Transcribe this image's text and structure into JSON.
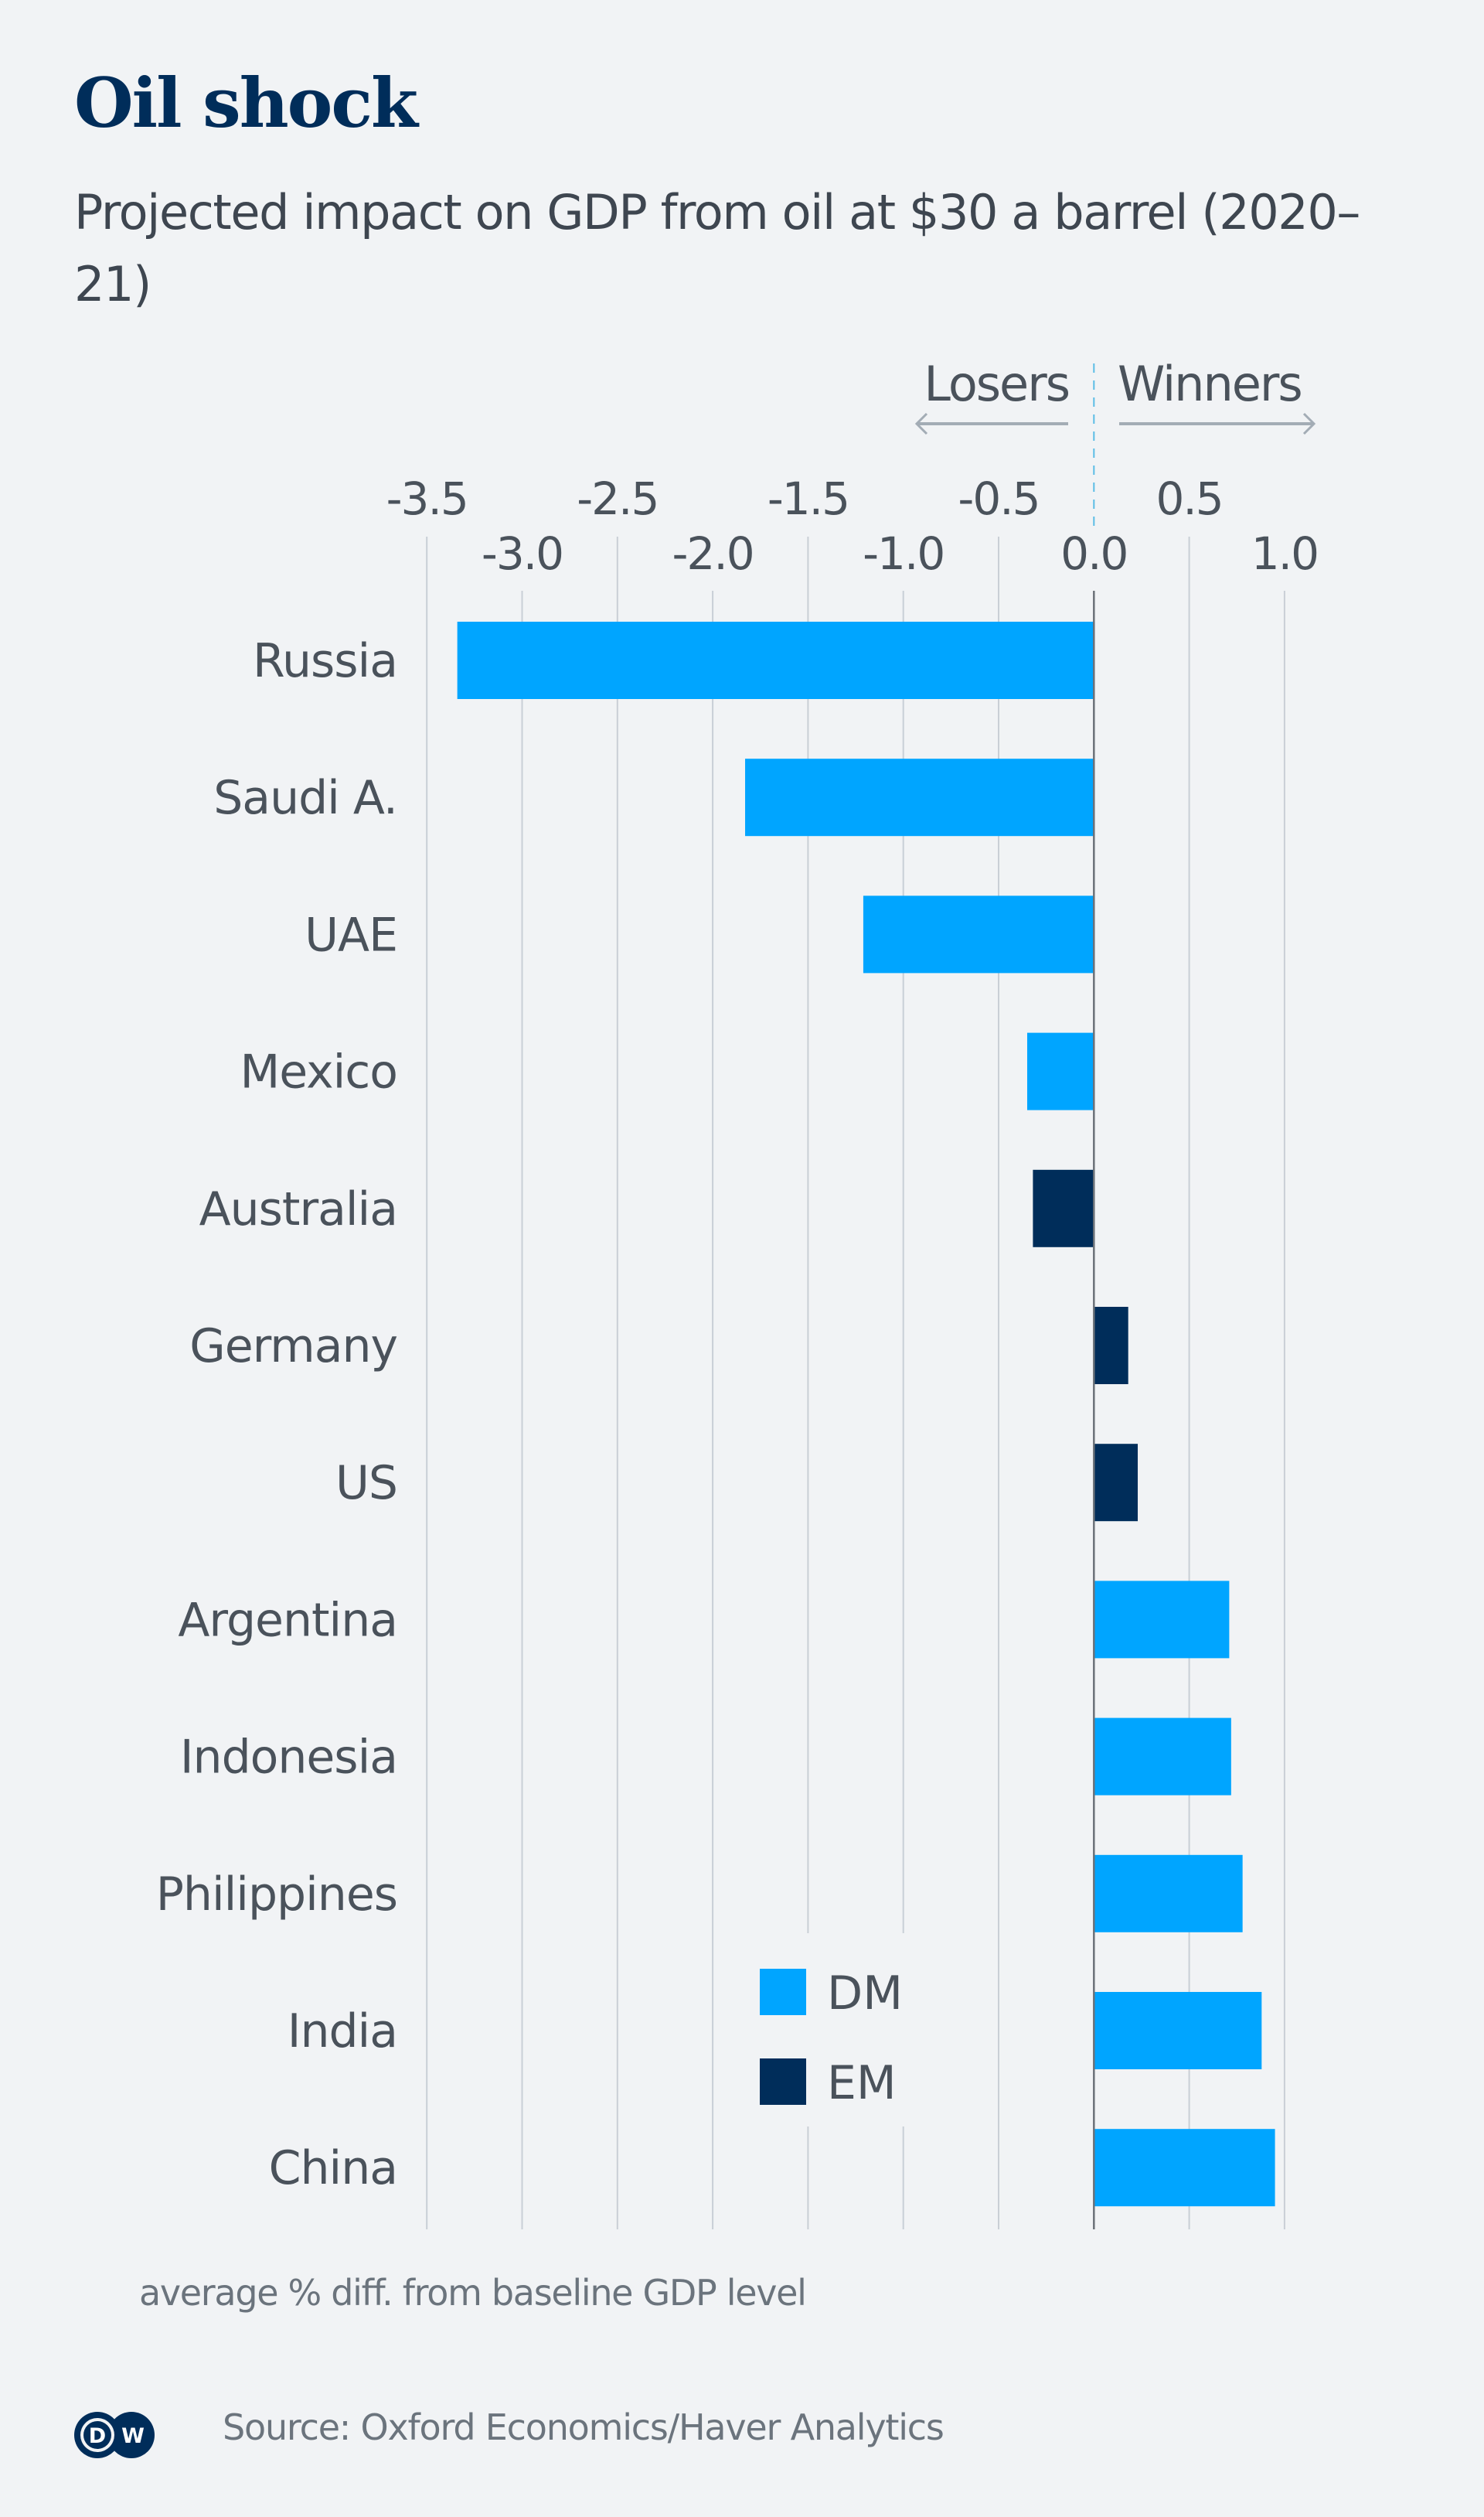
{
  "header": {
    "title": "Oil shock",
    "subtitle": "Projected impact on GDP from oil at $30 a barrel (2020–21)"
  },
  "direction": {
    "losers_label": "Losers",
    "winners_label": "Winners",
    "losers_icon": "arrow-left-icon",
    "winners_icon": "arrow-right-icon"
  },
  "colors": {
    "background": "#f1f3f5",
    "DM": "#00a5ff",
    "EM": "#002d5a",
    "title": "#002d5a",
    "text": "#4a525b",
    "muted_text": "#6b747d",
    "gridline": "#c9cfd6",
    "zero_line": "#6b7178",
    "zero_dash": "#5bbde6",
    "arrow": "#a3acb5"
  },
  "chart_data": {
    "type": "bar",
    "orientation": "horizontal",
    "title": "Oil shock",
    "subtitle": "Projected impact on GDP from oil at $30 a barrel (2020–21)",
    "xlabel": "average % diff. from baseline GDP level",
    "ylabel": "",
    "xlim": [
      -3.5,
      1.0
    ],
    "xticks": [
      -3.5,
      -3.0,
      -2.5,
      -2.0,
      -1.5,
      -1.0,
      -0.5,
      0.0,
      0.5,
      1.0
    ],
    "xtick_labels": [
      "-3.5",
      "-3.0",
      "-2.5",
      "-2.0",
      "-1.5",
      "-1.0",
      "-0.5",
      "0.0",
      "0.5",
      "1.0"
    ],
    "grid": true,
    "legend": {
      "placement": "bottom-center",
      "entries": [
        {
          "name": "DM",
          "color": "#00a5ff"
        },
        {
          "name": "EM",
          "color": "#002d5a"
        }
      ]
    },
    "annotations": [
      {
        "text": "Losers",
        "direction": "left"
      },
      {
        "text": "Winners",
        "direction": "right"
      }
    ],
    "categories": [
      "Russia",
      "Saudi A.",
      "UAE",
      "Mexico",
      "Australia",
      "Germany",
      "US",
      "Argentina",
      "Indonesia",
      "Philippines",
      "India",
      "China"
    ],
    "values": [
      -3.34,
      -1.83,
      -1.21,
      -0.35,
      -0.32,
      0.18,
      0.23,
      0.71,
      0.72,
      0.78,
      0.88,
      0.95
    ],
    "groups": [
      "DM",
      "DM",
      "DM",
      "DM",
      "EM",
      "EM",
      "EM",
      "DM",
      "DM",
      "DM",
      "DM",
      "DM"
    ]
  },
  "footer": {
    "note": "average % diff. from baseline GDP level",
    "source": "Source: Oxford Economics/Haver Analytics",
    "logo_text_left": "D",
    "logo_text_right": "W"
  }
}
